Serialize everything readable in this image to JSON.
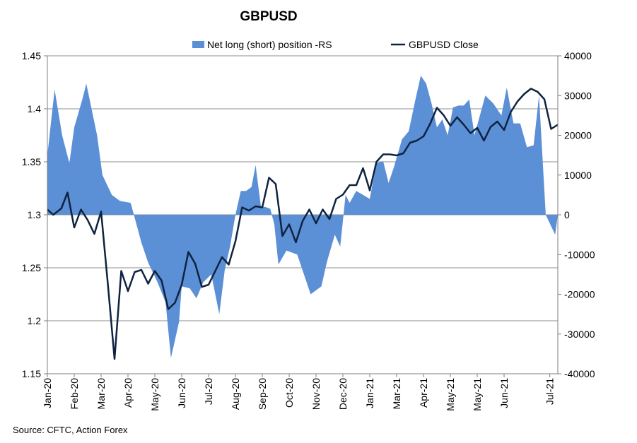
{
  "chart_data": {
    "type": "area+line",
    "title": "GBPUSD",
    "source": "Source: CFTC, Action Forex",
    "left_axis": {
      "min": 1.15,
      "max": 1.45,
      "ticks": [
        "1.45",
        "1.4",
        "1.35",
        "1.3",
        "1.25",
        "1.2",
        "1.15"
      ],
      "tick_values": [
        1.45,
        1.4,
        1.35,
        1.3,
        1.25,
        1.2,
        1.15
      ]
    },
    "right_axis": {
      "min": -40000,
      "max": 40000,
      "ticks": [
        "40000",
        "30000",
        "20000",
        "10000",
        "0",
        "-10000",
        "-20000",
        "-30000",
        "-40000"
      ],
      "tick_values": [
        40000,
        30000,
        20000,
        10000,
        0,
        -10000,
        -20000,
        -30000,
        -40000
      ]
    },
    "x_range": [
      0,
      19
    ],
    "x_ticks": [
      "Jan-20",
      "Feb-20",
      "Mar-20",
      "Apr-20",
      "May-20",
      "Jun-20",
      "Jul-20",
      "Aug-20",
      "Sep-20",
      "Oct-20",
      "Nov-20",
      "Dec-20",
      "Jan-21",
      "Mar-21",
      "Apr-21",
      "May-21",
      "May-21",
      "Jun-21",
      "Jul-21"
    ],
    "x_tick_positions": [
      0,
      1,
      2,
      3,
      4,
      5,
      6,
      7,
      8,
      9,
      10,
      11,
      12,
      13,
      14,
      15,
      16,
      17,
      18.7
    ],
    "legend": [
      {
        "label": "Net long (short) position -RS",
        "type": "area",
        "color": "#5b8fd6"
      },
      {
        "label": "GBPUSD Close",
        "type": "line",
        "color": "#0f2340"
      }
    ],
    "series": [
      {
        "name": "Net long (short) position -RS",
        "axis": "right",
        "x": [
          0,
          0.27,
          0.55,
          0.82,
          1.0,
          1.3,
          1.45,
          1.85,
          2.05,
          2.4,
          2.7,
          3.1,
          3.3,
          3.5,
          3.75,
          4.1,
          4.4,
          4.6,
          4.9,
          5.0,
          5.3,
          5.55,
          5.8,
          6.1,
          6.4,
          6.6,
          6.8,
          7.0,
          7.2,
          7.4,
          7.6,
          7.75,
          7.95,
          8.1,
          8.3,
          8.45,
          8.6,
          8.9,
          9.3,
          9.55,
          9.8,
          10.2,
          10.4,
          10.7,
          10.9,
          11.1,
          11.25,
          11.5,
          11.75,
          12.0,
          12.25,
          12.5,
          12.7,
          12.9,
          13.2,
          13.45,
          13.7,
          13.9,
          14.1,
          14.3,
          14.5,
          14.7,
          14.9,
          15.1,
          15.3,
          15.5,
          15.7,
          15.9,
          16.1,
          16.3,
          16.6,
          16.9,
          17.1,
          17.35,
          17.6,
          17.85,
          18.1,
          18.3,
          18.55,
          18.9,
          19.0
        ],
        "values": [
          15000,
          31500,
          20000,
          13000,
          22000,
          29000,
          33000,
          20000,
          10000,
          5000,
          3500,
          3000,
          -2000,
          -7000,
          -12000,
          -17000,
          -22000,
          -36000,
          -27000,
          -18000,
          -18500,
          -21000,
          -17000,
          -15000,
          -25000,
          -14000,
          -8000,
          0,
          6000,
          6000,
          7000,
          12500,
          2000,
          2000,
          1500,
          -2500,
          -12500,
          -9000,
          -10000,
          -15000,
          -20000,
          -18000,
          -12000,
          -5000,
          -8000,
          5000,
          3000,
          6000,
          5000,
          4000,
          13000,
          13500,
          8000,
          12000,
          19000,
          21000,
          29000,
          35000,
          33000,
          28000,
          22000,
          24000,
          20000,
          27000,
          27500,
          27500,
          29000,
          20000,
          25000,
          30000,
          28000,
          25000,
          32000,
          23000,
          23000,
          17000,
          17500,
          30000,
          0,
          -5000,
          0
        ]
      },
      {
        "name": "GBPUSD Close",
        "axis": "left",
        "x": [
          0,
          0.22,
          0.52,
          0.75,
          1.0,
          1.25,
          1.5,
          1.75,
          2.0,
          2.25,
          2.5,
          2.75,
          3.0,
          3.25,
          3.5,
          3.75,
          4.0,
          4.25,
          4.5,
          4.75,
          5.0,
          5.25,
          5.5,
          5.75,
          6.0,
          6.25,
          6.5,
          6.75,
          7.0,
          7.25,
          7.5,
          7.75,
          8.0,
          8.25,
          8.5,
          8.75,
          9.0,
          9.25,
          9.5,
          9.75,
          10.0,
          10.25,
          10.5,
          10.75,
          11.0,
          11.25,
          11.5,
          11.75,
          12.0,
          12.25,
          12.5,
          12.75,
          13.0,
          13.25,
          13.5,
          13.75,
          14.0,
          14.25,
          14.5,
          14.75,
          15.0,
          15.25,
          15.5,
          15.75,
          16.0,
          16.25,
          16.5,
          16.75,
          17.0,
          17.25,
          17.5,
          17.75,
          18.0,
          18.25,
          18.5,
          18.75,
          19.0
        ],
        "values": [
          1.305,
          1.3,
          1.306,
          1.321,
          1.288,
          1.305,
          1.295,
          1.282,
          1.303,
          1.235,
          1.164,
          1.247,
          1.228,
          1.246,
          1.248,
          1.235,
          1.247,
          1.238,
          1.211,
          1.217,
          1.234,
          1.265,
          1.254,
          1.232,
          1.234,
          1.247,
          1.26,
          1.253,
          1.275,
          1.307,
          1.304,
          1.308,
          1.307,
          1.335,
          1.329,
          1.28,
          1.291,
          1.274,
          1.294,
          1.305,
          1.292,
          1.305,
          1.296,
          1.315,
          1.319,
          1.328,
          1.328,
          1.344,
          1.323,
          1.35,
          1.357,
          1.357,
          1.356,
          1.358,
          1.368,
          1.37,
          1.374,
          1.386,
          1.401,
          1.394,
          1.384,
          1.392,
          1.385,
          1.377,
          1.382,
          1.37,
          1.383,
          1.388,
          1.38,
          1.397,
          1.407,
          1.414,
          1.419,
          1.416,
          1.409,
          1.381,
          1.385
        ]
      }
    ]
  }
}
